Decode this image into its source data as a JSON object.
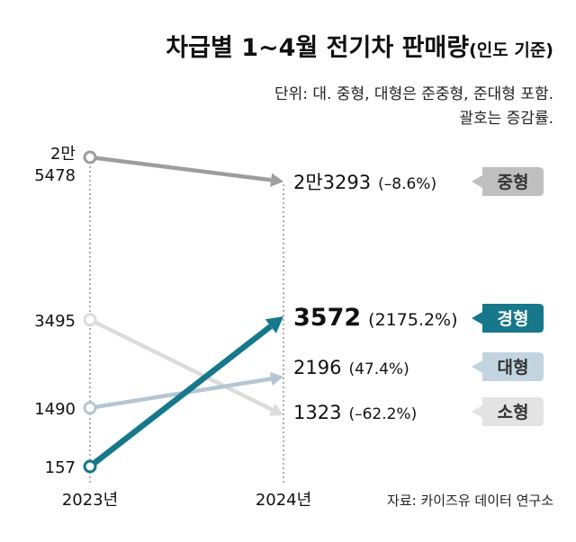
{
  "title": "차급별 1~4월 전기차 판매량",
  "title_suffix": "(인도 기준)",
  "notes": [
    "단위: 대. 중형, 대형은 준중형, 준대형 포함.",
    "괄호는 증감률."
  ],
  "source": "자료: 카이즈유 데이터 연구소",
  "chart_data": {
    "type": "line",
    "x": [
      "2023년",
      "2024년"
    ],
    "series": [
      {
        "name": "중형",
        "values": [
          25478,
          23293
        ],
        "start_label": "2만\n5478",
        "end_label": "2만3293",
        "change_label": "(–8.6%)",
        "color": "#9d9d9d",
        "tag_color": "#bfbfbf",
        "tag_text_color": "#333333",
        "highlight": false
      },
      {
        "name": "소형",
        "values": [
          3495,
          1323
        ],
        "start_label": "3495",
        "end_label": "1323",
        "change_label": "(–62.2%)",
        "color": "#dcdcdc",
        "tag_color": "#e3e3e3",
        "tag_text_color": "#333333",
        "highlight": false
      },
      {
        "name": "대형",
        "values": [
          1490,
          2196
        ],
        "start_label": "1490",
        "end_label": "2196",
        "change_label": "(47.4%)",
        "color": "#b4c6d3",
        "tag_color": "#c2d4e0",
        "tag_text_color": "#333333",
        "highlight": false
      },
      {
        "name": "경형",
        "values": [
          157,
          3572
        ],
        "start_label": "157",
        "end_label": "3572",
        "change_label": "(2175.2%)",
        "color": "#16788a",
        "tag_color": "#16788a",
        "tag_text_color": "#ffffff",
        "highlight": true
      }
    ]
  }
}
